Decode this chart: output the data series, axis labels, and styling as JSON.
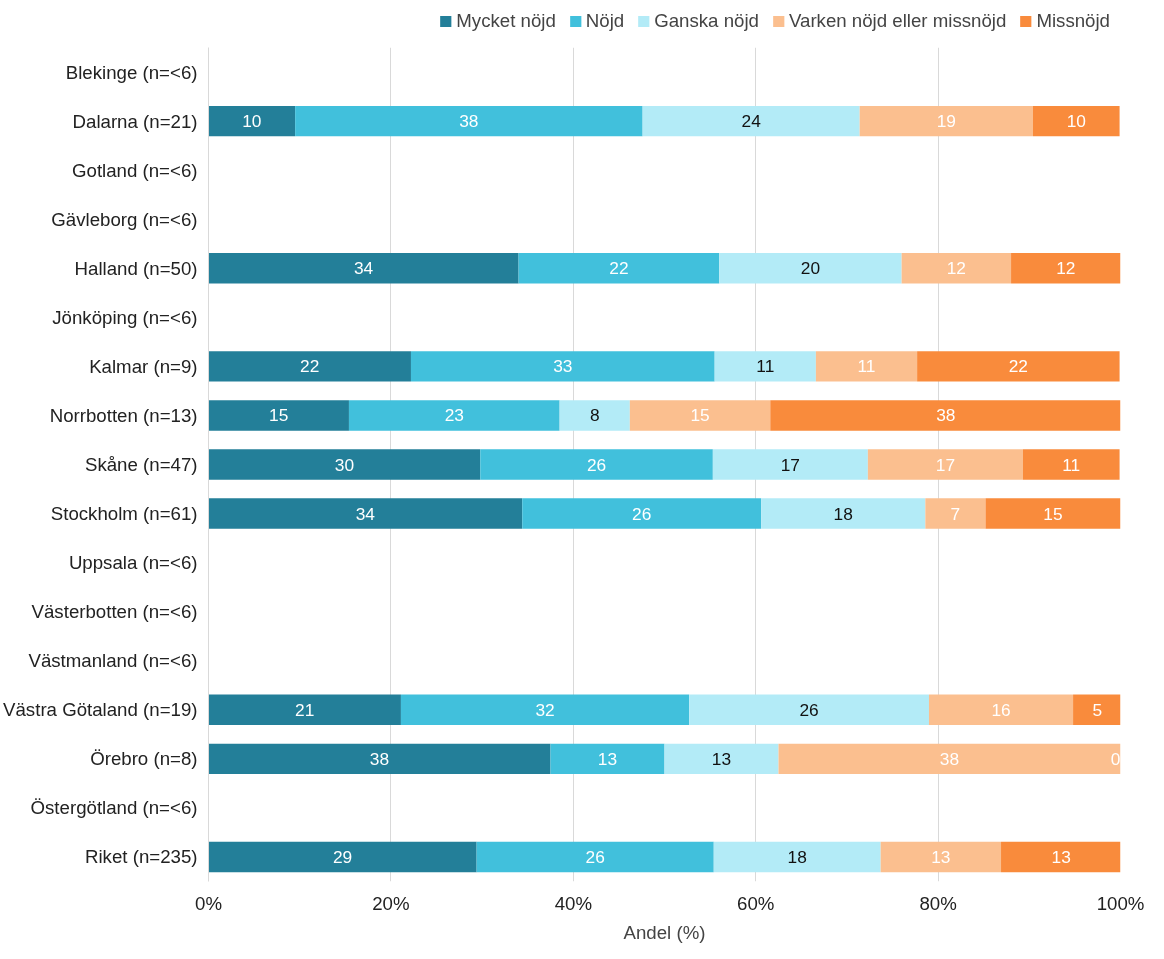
{
  "chart_data": {
    "type": "bar",
    "orientation": "horizontal",
    "stacked": true,
    "xlabel": "Andel (%)",
    "categories": [
      "Blekinge (n=<6)",
      "Dalarna (n=21)",
      "Gotland (n=<6)",
      "Gävleborg (n=<6)",
      "Halland (n=50)",
      "Jönköping (n=<6)",
      "Kalmar (n=9)",
      "Norrbotten (n=13)",
      "Skåne (n=47)",
      "Stockholm (n=61)",
      "Uppsala (n=<6)",
      "Västerbotten (n=<6)",
      "Västmanland (n=<6)",
      "Västra Götaland (n=19)",
      "Örebro (n=8)",
      "Östergötland (n=<6)",
      "Riket (n=235)"
    ],
    "series": [
      {
        "name": "Mycket nöjd",
        "color": "#237f99",
        "values": [
          null,
          9.5,
          null,
          null,
          34,
          null,
          22.2,
          15.4,
          29.8,
          34.4,
          null,
          null,
          null,
          21.1,
          37.5,
          null,
          29.4
        ],
        "value_labels": [
          null,
          "10",
          null,
          null,
          "34",
          null,
          "22",
          "15",
          "30",
          "34",
          null,
          null,
          null,
          "21",
          "38",
          null,
          "29"
        ]
      },
      {
        "name": "Nöjd",
        "color": "#41c0dc",
        "values": [
          null,
          38.1,
          null,
          null,
          22,
          null,
          33.3,
          23.1,
          25.5,
          26.2,
          null,
          null,
          null,
          31.6,
          12.5,
          null,
          26.0
        ],
        "value_labels": [
          null,
          "38",
          null,
          null,
          "22",
          null,
          "33",
          "23",
          "26",
          "26",
          null,
          null,
          null,
          "32",
          "13",
          null,
          "26"
        ]
      },
      {
        "name": "Ganska nöjd",
        "color": "#b3ebf7",
        "values": [
          null,
          23.8,
          null,
          null,
          20,
          null,
          11.1,
          7.7,
          17.0,
          18.0,
          null,
          null,
          null,
          26.3,
          12.5,
          null,
          18.3
        ],
        "value_labels": [
          null,
          "24",
          null,
          null,
          "20",
          null,
          "11",
          "8",
          "17",
          "18",
          null,
          null,
          null,
          "26",
          "13",
          null,
          "18"
        ]
      },
      {
        "name": "Varken nöjd eller missnöjd",
        "color": "#fbbf8f",
        "values": [
          null,
          19.0,
          null,
          null,
          12,
          null,
          11.1,
          15.4,
          17.0,
          6.6,
          null,
          null,
          null,
          15.8,
          37.5,
          null,
          13.2
        ],
        "value_labels": [
          null,
          "19",
          null,
          null,
          "12",
          null,
          "11",
          "15",
          "17",
          "7",
          null,
          null,
          null,
          "16",
          "38",
          null,
          "13"
        ]
      },
      {
        "name": "Missnöjd",
        "color": "#f98b3c",
        "values": [
          null,
          9.5,
          null,
          null,
          12,
          null,
          22.2,
          38.5,
          10.6,
          14.8,
          null,
          null,
          null,
          5.3,
          0,
          null,
          13.2
        ],
        "value_labels": [
          null,
          "10",
          null,
          null,
          "12",
          null,
          "22",
          "38",
          "11",
          "15",
          null,
          null,
          null,
          "5",
          "0",
          null,
          "13"
        ]
      }
    ],
    "xlim": [
      0,
      100
    ],
    "xticks": [
      {
        "value": 0,
        "label": "0%"
      },
      {
        "value": 20,
        "label": "20%"
      },
      {
        "value": 40,
        "label": "40%"
      },
      {
        "value": 60,
        "label": "60%"
      },
      {
        "value": 80,
        "label": "80%"
      },
      {
        "value": 100,
        "label": "100%"
      }
    ],
    "grid": "x",
    "legend": "top"
  }
}
